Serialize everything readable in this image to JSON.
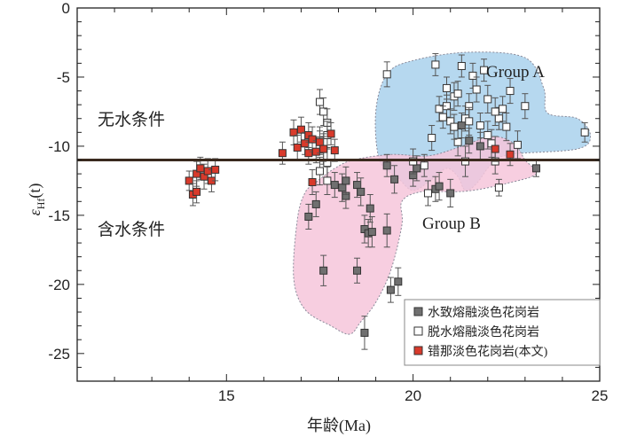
{
  "chart_data": {
    "type": "scatter",
    "title": "",
    "xlabel": "年龄(Ma)",
    "ylabel": "εHf(t)",
    "ylabel_parts": {
      "main": "ε",
      "sub": "Hf",
      "tail": "(t)"
    },
    "xlim": [
      11,
      25
    ],
    "ylim": [
      -27,
      0
    ],
    "xticks": [
      15,
      20,
      25
    ],
    "yticks": [
      0,
      -5,
      -10,
      -15,
      -20,
      -25
    ],
    "reference_line_y": -11,
    "annotations": {
      "anhydrous": "无水条件",
      "hydrous": "含水条件",
      "group_a": "Group A",
      "group_b": "Group B"
    },
    "regions": [
      {
        "name": "Group A",
        "fill": "#a9d1ec",
        "outline": [
          [
            19.1,
            -11
          ],
          [
            19.0,
            -7.5
          ],
          [
            19.3,
            -4.8
          ],
          [
            20.0,
            -3.8
          ],
          [
            21.5,
            -3.2
          ],
          [
            23.0,
            -3.6
          ],
          [
            23.5,
            -5.8
          ],
          [
            23.6,
            -7.6
          ],
          [
            24.4,
            -8.0
          ],
          [
            24.75,
            -9.2
          ],
          [
            24.4,
            -10.2
          ],
          [
            22.6,
            -10.6
          ],
          [
            22.1,
            -11.3
          ],
          [
            21.7,
            -12.7
          ],
          [
            21.4,
            -13.2
          ],
          [
            21.2,
            -12.2
          ],
          [
            20.9,
            -11.6
          ],
          [
            20.5,
            -12.4
          ],
          [
            20.0,
            -13.2
          ],
          [
            19.6,
            -12.3
          ]
        ]
      },
      {
        "name": "Group B",
        "fill": "#f6c6da",
        "outline": [
          [
            17.4,
            -12.6
          ],
          [
            17.9,
            -11.6
          ],
          [
            18.4,
            -11.0
          ],
          [
            19.4,
            -10.6
          ],
          [
            20.4,
            -10.7
          ],
          [
            21.2,
            -10.1
          ],
          [
            22.1,
            -9.3
          ],
          [
            22.7,
            -9.8
          ],
          [
            23.0,
            -11.0
          ],
          [
            23.3,
            -12.0
          ],
          [
            22.5,
            -12.7
          ],
          [
            21.6,
            -13.2
          ],
          [
            21.0,
            -13.3
          ],
          [
            20.2,
            -13.3
          ],
          [
            19.7,
            -14.0
          ],
          [
            19.7,
            -15.7
          ],
          [
            19.4,
            -19.0
          ],
          [
            19.0,
            -21.3
          ],
          [
            18.6,
            -22.7
          ],
          [
            18.3,
            -23.6
          ],
          [
            17.8,
            -23.0
          ],
          [
            17.1,
            -21.8
          ],
          [
            16.8,
            -19.5
          ],
          [
            16.9,
            -15.3
          ],
          [
            17.1,
            -13.4
          ]
        ]
      }
    ],
    "series": [
      {
        "name": "水致熔融淡色花岗岩",
        "marker": "square",
        "fill": "#707070",
        "points": [
          [
            17.2,
            -15.1,
            0.9
          ],
          [
            17.4,
            -14.2,
            0.9
          ],
          [
            17.6,
            -19.0,
            1.1
          ],
          [
            17.9,
            -12.8,
            0.9
          ],
          [
            18.1,
            -13.0,
            1.0
          ],
          [
            18.2,
            -13.6,
            0.9
          ],
          [
            18.2,
            -12.5,
            1.0
          ],
          [
            18.5,
            -12.8,
            0.9
          ],
          [
            18.5,
            -19.0,
            0.9
          ],
          [
            18.6,
            -13.3,
            1.0
          ],
          [
            18.7,
            -16.0,
            1.0
          ],
          [
            18.8,
            -16.3,
            1.0
          ],
          [
            18.85,
            -14.5,
            1.0
          ],
          [
            18.9,
            -16.2,
            1.1
          ],
          [
            19.3,
            -11.4,
            0.8
          ],
          [
            19.3,
            -16.1,
            1.2
          ],
          [
            19.4,
            -20.4,
            0.9
          ],
          [
            19.5,
            -12.4,
            1.0
          ],
          [
            19.6,
            -19.8,
            1.0
          ],
          [
            20.0,
            -12.1,
            0.8
          ],
          [
            20.1,
            -11.6,
            0.9
          ],
          [
            20.6,
            -13.1,
            0.9
          ],
          [
            20.7,
            -12.9,
            1.0
          ],
          [
            21.0,
            -13.4,
            1.0
          ],
          [
            21.3,
            -8.5,
            0.9
          ],
          [
            21.5,
            -9.6,
            0.9
          ],
          [
            21.8,
            -10.0,
            1.0
          ],
          [
            23.3,
            -11.6,
            0.6
          ],
          [
            18.7,
            -23.5,
            1.2
          ]
        ]
      },
      {
        "name": "脱水熔融淡色花岗岩",
        "marker": "square",
        "fill": "#ffffff",
        "points": [
          [
            17.5,
            -6.8,
            0.9
          ],
          [
            17.6,
            -7.5,
            1.0
          ],
          [
            17.7,
            -8.3,
            1.0
          ],
          [
            17.7,
            -9.2,
            1.0
          ],
          [
            17.6,
            -10.2,
            1.1
          ],
          [
            17.7,
            -11.2,
            1.1
          ],
          [
            17.5,
            -11.8,
            1.0
          ],
          [
            17.7,
            -12.5,
            1.0
          ],
          [
            17.5,
            -9.6,
            1.0
          ],
          [
            19.3,
            -4.8,
            0.9
          ],
          [
            20.0,
            -11.1,
            0.9
          ],
          [
            20.3,
            -11.4,
            0.8
          ],
          [
            20.4,
            -13.4,
            0.9
          ],
          [
            20.5,
            -9.4,
            0.9
          ],
          [
            20.6,
            -4.1,
            0.8
          ],
          [
            20.7,
            -7.3,
            0.9
          ],
          [
            20.9,
            -5.8,
            0.8
          ],
          [
            20.9,
            -7.1,
            0.8
          ],
          [
            21.0,
            -8.2,
            0.9
          ],
          [
            21.1,
            -6.4,
            1.0
          ],
          [
            21.2,
            -6.2,
            0.9
          ],
          [
            21.2,
            -9.7,
            1.0
          ],
          [
            21.3,
            -4.2,
            0.8
          ],
          [
            21.4,
            -8.0,
            0.9
          ],
          [
            21.4,
            -11.1,
            1.1
          ],
          [
            21.5,
            -7.1,
            0.9
          ],
          [
            21.5,
            -8.2,
            1.0
          ],
          [
            21.6,
            -4.9,
            0.9
          ],
          [
            21.7,
            -5.9,
            0.9
          ],
          [
            21.8,
            -8.5,
            0.9
          ],
          [
            21.9,
            -4.5,
            0.8
          ],
          [
            22.0,
            -6.6,
            1.0
          ],
          [
            22.0,
            -9.2,
            1.0
          ],
          [
            22.1,
            -9.8,
            1.0
          ],
          [
            22.2,
            -11.1,
            0.9
          ],
          [
            22.3,
            -13.0,
            0.6
          ],
          [
            22.3,
            -8.0,
            0.8
          ],
          [
            22.4,
            -7.3,
            0.9
          ],
          [
            22.5,
            -8.6,
            1.0
          ],
          [
            22.6,
            -6.0,
            0.9
          ],
          [
            22.8,
            -9.9,
            1.0
          ],
          [
            23.0,
            -7.1,
            0.9
          ],
          [
            24.6,
            -9.0,
            0.7
          ],
          [
            22.2,
            -7.5,
            1.0
          ],
          [
            21.1,
            -8.6,
            0.9
          ],
          [
            20.8,
            -7.9,
            0.8
          ]
        ]
      },
      {
        "name": "错那淡色花岗岩(本文)",
        "marker": "square",
        "fill": "#d83a2b",
        "points": [
          [
            14.0,
            -12.5,
            0.7
          ],
          [
            14.1,
            -13.5,
            0.8
          ],
          [
            14.2,
            -13.3,
            0.8
          ],
          [
            14.2,
            -12.0,
            0.9
          ],
          [
            14.3,
            -11.6,
            0.8
          ],
          [
            14.4,
            -12.2,
            0.9
          ],
          [
            14.5,
            -11.8,
            0.9
          ],
          [
            14.6,
            -12.5,
            0.8
          ],
          [
            14.7,
            -11.7,
            0.8
          ],
          [
            16.5,
            -10.5,
            0.8
          ],
          [
            16.8,
            -9.0,
            0.9
          ],
          [
            16.9,
            -10.1,
            0.9
          ],
          [
            17.0,
            -8.8,
            0.9
          ],
          [
            17.1,
            -9.8,
            0.8
          ],
          [
            17.2,
            -9.2,
            0.9
          ],
          [
            17.2,
            -10.5,
            0.8
          ],
          [
            17.3,
            -9.5,
            0.9
          ],
          [
            17.3,
            -12.6,
            0.9
          ],
          [
            17.4,
            -10.4,
            0.8
          ],
          [
            17.5,
            -9.7,
            0.8
          ],
          [
            17.6,
            -10.2,
            0.9
          ],
          [
            17.8,
            -9.1,
            0.8
          ],
          [
            17.9,
            -10.3,
            0.8
          ],
          [
            22.2,
            -10.2,
            0.9
          ],
          [
            22.6,
            -10.6,
            0.8
          ]
        ]
      }
    ],
    "legend": {
      "position": "bottom-right",
      "entries": [
        "水致熔融淡色花岗岩",
        "脱水熔融淡色花岗岩",
        "错那淡色花岗岩(本文)"
      ]
    }
  }
}
